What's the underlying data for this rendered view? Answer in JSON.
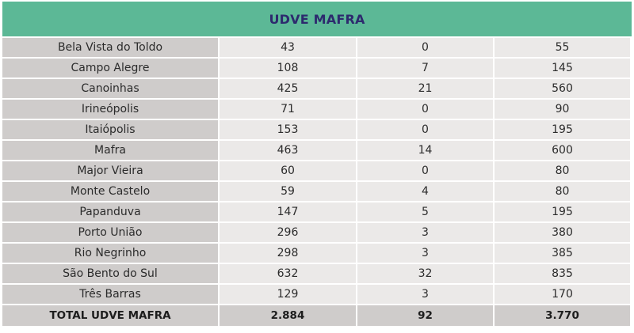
{
  "table": {
    "title": "UDVE MAFRA",
    "rows": [
      {
        "name": "Bela Vista do Toldo",
        "v1": "43",
        "v2": "0",
        "v3": "55"
      },
      {
        "name": "Campo Alegre",
        "v1": "108",
        "v2": "7",
        "v3": "145"
      },
      {
        "name": "Canoinhas",
        "v1": "425",
        "v2": "21",
        "v3": "560"
      },
      {
        "name": "Irineópolis",
        "v1": "71",
        "v2": "0",
        "v3": "90"
      },
      {
        "name": "Itaiópolis",
        "v1": "153",
        "v2": "0",
        "v3": "195"
      },
      {
        "name": "Mafra",
        "v1": "463",
        "v2": "14",
        "v3": "600"
      },
      {
        "name": "Major Vieira",
        "v1": "60",
        "v2": "0",
        "v3": "80"
      },
      {
        "name": "Monte Castelo",
        "v1": "59",
        "v2": "4",
        "v3": "80"
      },
      {
        "name": "Papanduva",
        "v1": "147",
        "v2": "5",
        "v3": "195"
      },
      {
        "name": "Porto União",
        "v1": "296",
        "v2": "3",
        "v3": "380"
      },
      {
        "name": "Rio Negrinho",
        "v1": "298",
        "v2": "3",
        "v3": "385"
      },
      {
        "name": "São Bento do Sul",
        "v1": "632",
        "v2": "32",
        "v3": "835"
      },
      {
        "name": "Três Barras",
        "v1": "129",
        "v2": "3",
        "v3": "170"
      }
    ],
    "total": {
      "name": "TOTAL UDVE MAFRA",
      "v1": "2.884",
      "v2": "92",
      "v3": "3.770"
    },
    "colors": {
      "header_bg": "#5cb896",
      "header_text": "#2d2a6e",
      "name_cell_bg": "#cfcccb",
      "value_cell_bg": "#ebe9e8"
    }
  }
}
